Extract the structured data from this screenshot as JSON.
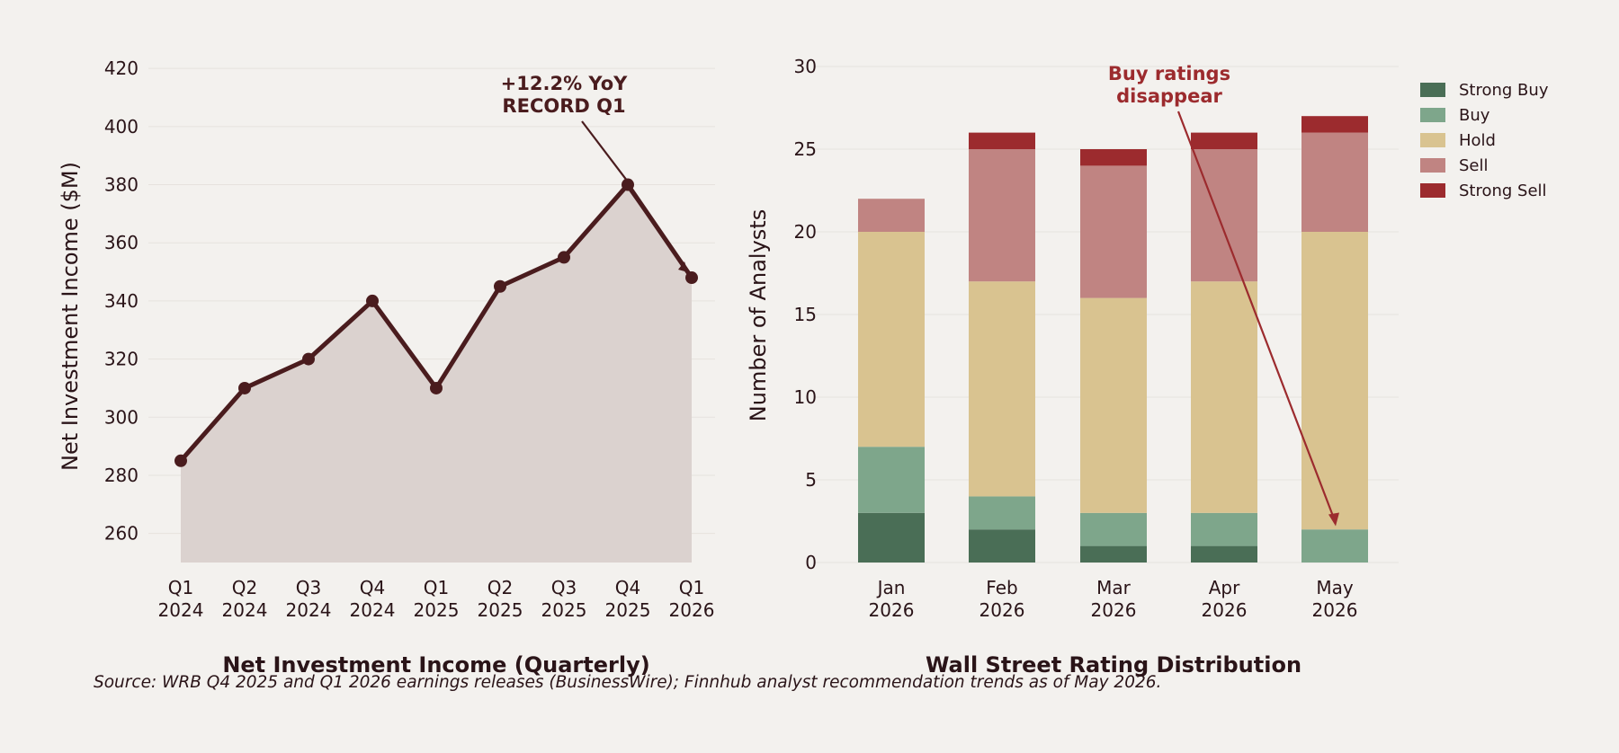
{
  "chart_data": [
    {
      "type": "area",
      "title": "Net Investment Income (Quarterly)",
      "ylabel": "Net Investment Income ($M)",
      "xlabel": "",
      "categories": [
        [
          "Q1",
          "2024"
        ],
        [
          "Q2",
          "2024"
        ],
        [
          "Q3",
          "2024"
        ],
        [
          "Q4",
          "2024"
        ],
        [
          "Q1",
          "2025"
        ],
        [
          "Q2",
          "2025"
        ],
        [
          "Q3",
          "2025"
        ],
        [
          "Q4",
          "2025"
        ],
        [
          "Q1",
          "2026"
        ]
      ],
      "values": [
        285,
        310,
        320,
        340,
        310,
        345,
        355,
        380,
        348
      ],
      "ylim": [
        250,
        425
      ],
      "yticks": [
        260,
        280,
        300,
        320,
        340,
        360,
        380,
        400,
        420
      ],
      "grid": true,
      "line_color": "#4a1c1e",
      "fill_color": "#dbd2cf",
      "annotation": {
        "lines": [
          "+12.2% YoY",
          "RECORD Q1"
        ],
        "point_index": 7,
        "color": "#4a1c1e"
      }
    },
    {
      "type": "bar",
      "stacked": true,
      "title": "Wall Street Rating Distribution",
      "ylabel": "Number of Analysts",
      "xlabel": "",
      "categories": [
        [
          "Jan",
          "2026"
        ],
        [
          "Feb",
          "2026"
        ],
        [
          "Mar",
          "2026"
        ],
        [
          "Apr",
          "2026"
        ],
        [
          "May",
          "2026"
        ]
      ],
      "series": [
        {
          "name": "Strong Buy",
          "values": [
            3,
            2,
            1,
            1,
            0
          ],
          "color": "#4a6e56"
        },
        {
          "name": "Buy",
          "values": [
            4,
            2,
            2,
            2,
            2
          ],
          "color": "#7ea68b"
        },
        {
          "name": "Hold",
          "values": [
            13,
            13,
            13,
            14,
            18
          ],
          "color": "#d9c390"
        },
        {
          "name": "Sell",
          "values": [
            2,
            8,
            8,
            8,
            6
          ],
          "color": "#c08482"
        },
        {
          "name": "Strong Sell",
          "values": [
            0,
            1,
            1,
            1,
            1
          ],
          "color": "#9c2b2e"
        }
      ],
      "ylim": [
        0,
        30
      ],
      "yticks": [
        0,
        5,
        10,
        15,
        20,
        25,
        30
      ],
      "grid": true,
      "legend_position": "top-right",
      "annotation": {
        "lines": [
          "Buy ratings",
          "disappear"
        ],
        "target_category": 4,
        "target_value": 2,
        "color": "#9c2b2e"
      }
    }
  ],
  "source": "Source: WRB Q4 2025 and Q1 2026 earnings releases (BusinessWire); Finnhub analyst recommendation trends as of May 2026."
}
